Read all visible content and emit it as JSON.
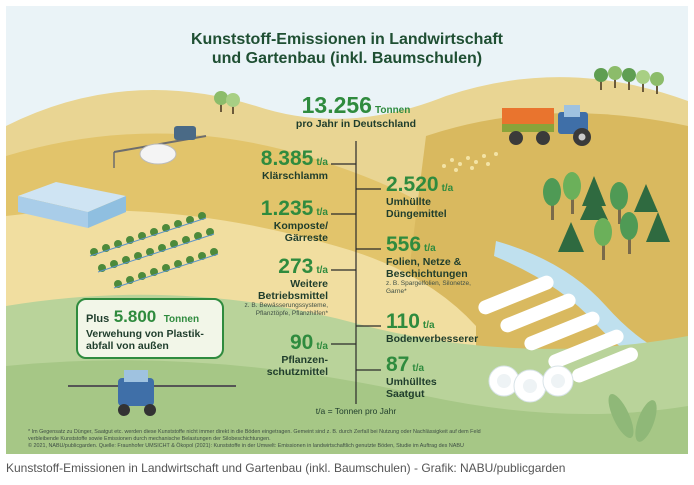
{
  "infographic": {
    "title_line1": "Kunststoff-Emissionen in Landwirtschaft",
    "title_line2": "und Gartenbau (inkl. Baumschulen)",
    "total": {
      "value": "13.256",
      "unit": "Tonnen",
      "label": "pro Jahr in Deutschland"
    },
    "unit_short": "t/a",
    "items_left": [
      {
        "value": "8.385",
        "label_lines": [
          "Klärschlamm"
        ],
        "note_lines": []
      },
      {
        "value": "1.235",
        "label_lines": [
          "Komposte/",
          "Gärreste"
        ],
        "note_lines": []
      },
      {
        "value": "273",
        "label_lines": [
          "Weitere",
          "Betriebsmittel"
        ],
        "note_lines": [
          "z. B. Bewässerungssysteme,",
          "Pflanztöpfe, Pflanzhilfen*"
        ]
      },
      {
        "value": "90",
        "label_lines": [
          "Pflanzen-",
          "schutzmittel"
        ],
        "note_lines": []
      }
    ],
    "items_right": [
      {
        "value": "2.520",
        "label_lines": [
          "Umhüllte",
          "Düngemittel"
        ],
        "note_lines": []
      },
      {
        "value": "556",
        "label_lines": [
          "Folien, Netze &",
          "Beschichtungen"
        ],
        "note_lines": [
          "z. B. Spargelfolien, Silonetze,",
          "Garne*"
        ]
      },
      {
        "value": "110",
        "label_lines": [
          "Bodenverbesserer"
        ],
        "note_lines": []
      },
      {
        "value": "87",
        "label_lines": [
          "Umhülltes",
          "Saatgut"
        ],
        "note_lines": []
      }
    ],
    "extra": {
      "prefix": "Plus",
      "value": "5.800",
      "unit": "Tonnen",
      "label_line1": "Verwehung von Plastik-",
      "label_line2": "abfall von außen"
    },
    "legend": "t/a = Tonnen pro Jahr",
    "footnote_line1": "*  Im Gegensatz zu Dünger, Saatgut etc. werden diese Kunststoffe nicht immer direkt in die Böden eingetragen. Gemeint sind z. B. durch Zerfall bei Nutzung oder Nachlässigkeit auf dem Feld",
    "footnote_line2": "verbleibende Kunststoffe sowie Emissionen durch mechanische Belastungen der Silobeschichtungen.",
    "footnote_line3": "© 2021, NABU/publicgarden. Quelle: Fraunhofer UMSICHT & Ökopol (2021): Kunststoffe in der Umwelt: Emissionen in landwirtschaftlich genutzte Böden, Studie im Auftrag des NABU"
  },
  "caption": "Kunststoff-Emissionen in Landwirtschaft und Gartenbau (inkl. Baumschulen) - Grafik: NABU/publicgarden",
  "colors": {
    "accent_green": "#2f8b3e",
    "dark_green": "#1f4f33",
    "field_yellow": "#e6c76f",
    "meadow_green": "#b9d39a"
  }
}
